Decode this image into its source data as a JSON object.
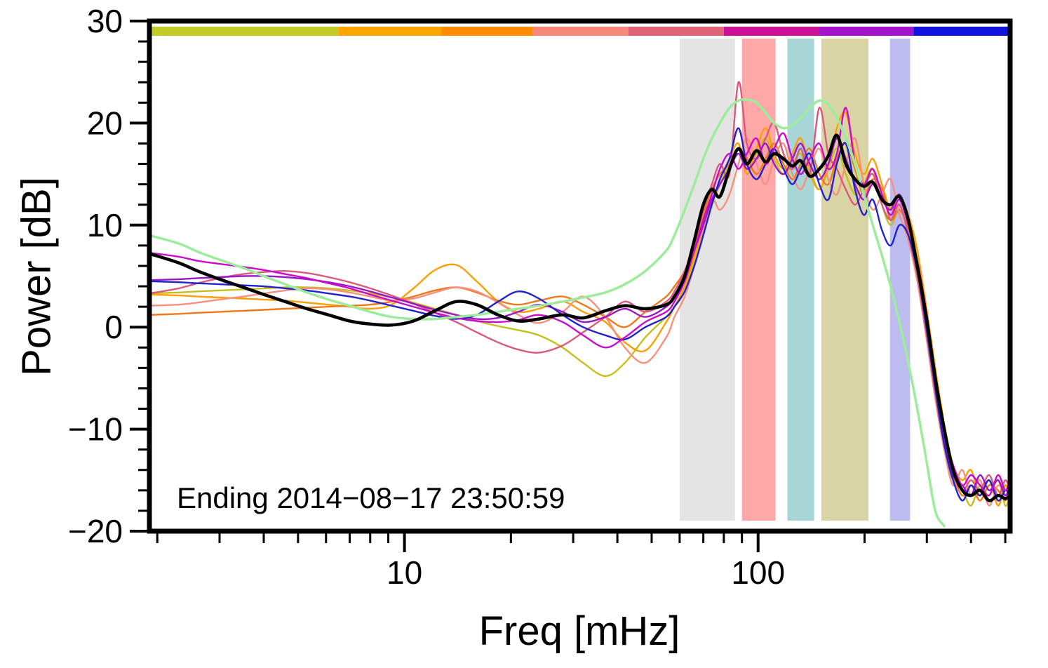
{
  "chart_data": {
    "type": "line",
    "title": "",
    "xlabel": "Freq [mHz]",
    "ylabel": "Power [dB]",
    "annotation": "Ending 2014−08−17 23:50:59",
    "x_scale": "log",
    "xlim": [
      1.9,
      516
    ],
    "ylim": [
      -20,
      30
    ],
    "grid": false,
    "legend": "none",
    "x_ticks_labeled": [
      10,
      100
    ],
    "x_tick_label_texts": [
      "10",
      "100"
    ],
    "y_major_ticks": [
      -20,
      -10,
      0,
      10,
      20,
      30
    ],
    "y_tick_labels": [
      "−20",
      "−10",
      "0",
      "10",
      "20",
      "30"
    ],
    "y_minor_step": 2,
    "x": [
      1.9,
      2.3,
      2.6,
      3,
      3.5,
      4,
      4.6,
      5.3,
      6.1,
      7,
      8,
      9.2,
      10.6,
      12.2,
      14,
      16,
      18.4,
      21,
      24,
      28,
      32,
      37,
      42,
      48,
      55,
      58,
      62,
      66,
      70,
      74,
      78,
      83,
      88,
      93,
      99,
      105,
      111,
      118,
      125,
      132,
      140,
      149,
      158,
      167,
      177,
      188,
      199,
      211,
      224,
      237,
      251,
      266,
      282,
      299,
      317,
      336,
      356,
      378,
      400,
      424,
      450,
      477,
      500,
      515
    ],
    "series": [
      {
        "name": "olive",
        "color": "#C6BE1C",
        "width": 2.4,
        "values": [
          3.3,
          3.4,
          3.5,
          3.6,
          3.7,
          3.8,
          3.9,
          3.9,
          3.8,
          3.6,
          3.3,
          2.9,
          2.4,
          1.8,
          1.2,
          0.6,
          0.1,
          -0.3,
          -0.8,
          -2.0,
          -3.5,
          -4.8,
          -3.5,
          -1.0,
          1.0,
          2.0,
          3.5,
          6.5,
          9.5,
          12.0,
          14.0,
          16.0,
          17.5,
          15.5,
          17.0,
          18.5,
          16.5,
          15.0,
          16.0,
          17.0,
          15.0,
          13.5,
          15.5,
          17.5,
          15.0,
          13.0,
          14.0,
          15.5,
          12.0,
          10.0,
          11.5,
          9.5,
          5.0,
          -0.5,
          -6.5,
          -12.0,
          -15.0,
          -16.0,
          -17.5,
          -15.5,
          -16.5,
          -15.0,
          -17.5,
          -16.5
        ]
      },
      {
        "name": "orange",
        "color": "#FF9E00",
        "width": 2.4,
        "values": [
          3.2,
          3.1,
          3.0,
          2.9,
          2.8,
          2.7,
          2.6,
          2.4,
          2.2,
          2.0,
          1.8,
          2.2,
          3.8,
          5.6,
          6.1,
          4.5,
          2.5,
          1.5,
          1.8,
          2.5,
          1.5,
          0.5,
          -1.5,
          -2.3,
          0.5,
          2.0,
          4.0,
          7.0,
          10.0,
          12.0,
          14.5,
          16.5,
          18.0,
          15.0,
          17.5,
          19.5,
          17.0,
          15.5,
          17.0,
          18.5,
          15.5,
          13.5,
          16.0,
          19.5,
          21.0,
          17.0,
          15.0,
          16.5,
          14.0,
          11.5,
          12.5,
          11.0,
          7.5,
          2.0,
          -4.0,
          -9.5,
          -13.5,
          -15.0,
          -14.0,
          -16.5,
          -15.0,
          -17.5,
          -15.5,
          -16.5
        ]
      },
      {
        "name": "dark-orange",
        "color": "#F07818",
        "width": 2.4,
        "values": [
          1.2,
          1.3,
          1.4,
          1.5,
          1.6,
          1.7,
          1.8,
          1.9,
          2.0,
          2.1,
          2.2,
          2.5,
          3.0,
          3.6,
          3.9,
          3.4,
          2.6,
          2.2,
          2.6,
          3.0,
          2.2,
          1.0,
          0.0,
          1.5,
          3.0,
          4.0,
          5.5,
          8.0,
          11.0,
          13.5,
          15.0,
          16.0,
          17.5,
          16.5,
          15.0,
          16.5,
          18.0,
          16.0,
          14.5,
          16.0,
          17.5,
          15.0,
          14.0,
          16.5,
          18.0,
          15.5,
          13.0,
          14.5,
          13.5,
          10.5,
          11.5,
          9.5,
          5.5,
          0.0,
          -6.0,
          -11.0,
          -14.5,
          -16.5,
          -15.5,
          -17.0,
          -15.5,
          -16.0,
          -17.0,
          -16.0
        ]
      },
      {
        "name": "salmon",
        "color": "#F8907E",
        "width": 2.4,
        "values": [
          2.1,
          2.2,
          2.4,
          2.7,
          3.0,
          3.3,
          3.6,
          3.8,
          3.7,
          3.4,
          3.0,
          2.6,
          2.8,
          3.4,
          3.9,
          3.5,
          2.4,
          1.2,
          0.4,
          1.5,
          3.0,
          1.0,
          -2.0,
          -3.5,
          -1.0,
          1.0,
          3.0,
          6.0,
          9.5,
          12.5,
          11.5,
          13.0,
          16.0,
          18.5,
          16.0,
          14.0,
          16.5,
          18.0,
          15.0,
          13.5,
          15.5,
          17.5,
          14.5,
          13.0,
          16.0,
          18.5,
          14.0,
          11.5,
          13.0,
          14.5,
          11.0,
          8.5,
          4.5,
          -1.0,
          -7.0,
          -12.0,
          -15.5,
          -14.0,
          -16.5,
          -15.0,
          -17.5,
          -15.5,
          -16.5,
          -15.5
        ]
      },
      {
        "name": "crimson",
        "color": "#D95B79",
        "width": 2.4,
        "values": [
          3.3,
          3.8,
          4.3,
          4.8,
          5.2,
          5.4,
          5.5,
          5.3,
          4.9,
          4.4,
          3.8,
          3.1,
          2.3,
          1.4,
          0.5,
          -0.5,
          -1.5,
          -2.2,
          -2.5,
          -1.8,
          -0.5,
          1.0,
          2.5,
          1.5,
          2.5,
          3.5,
          5.5,
          8.0,
          11.5,
          14.0,
          16.0,
          15.0,
          24.0,
          18.0,
          16.5,
          18.5,
          20.0,
          17.0,
          15.5,
          17.5,
          15.0,
          21.5,
          17.0,
          15.5,
          13.5,
          12.0,
          13.5,
          15.0,
          12.0,
          10.5,
          12.0,
          9.0,
          5.0,
          -0.5,
          -6.5,
          -11.5,
          -14.0,
          -16.0,
          -15.0,
          -16.0,
          -14.5,
          -16.5,
          -15.0,
          -16.0
        ]
      },
      {
        "name": "purple",
        "color": "#9A18C8",
        "width": 2.4,
        "values": [
          4.6,
          4.7,
          4.8,
          4.9,
          5.0,
          5.0,
          4.9,
          4.7,
          4.4,
          4.0,
          3.5,
          2.9,
          2.3,
          1.7,
          1.2,
          0.8,
          0.9,
          1.5,
          2.2,
          1.5,
          0.5,
          1.0,
          1.8,
          1.0,
          2.0,
          3.0,
          5.0,
          7.5,
          10.0,
          12.5,
          14.0,
          15.5,
          17.0,
          15.5,
          16.5,
          18.0,
          16.0,
          15.0,
          16.5,
          18.0,
          16.0,
          14.5,
          16.0,
          18.5,
          16.5,
          14.0,
          12.5,
          14.0,
          12.5,
          11.5,
          13.0,
          10.5,
          6.0,
          0.5,
          -5.5,
          -11.0,
          -14.5,
          -15.5,
          -16.5,
          -14.5,
          -16.0,
          -15.0,
          -16.5,
          -15.5
        ]
      },
      {
        "name": "blue",
        "color": "#2222CC",
        "width": 2.4,
        "values": [
          4.5,
          4.4,
          4.3,
          4.2,
          4.1,
          4.0,
          3.8,
          3.6,
          3.3,
          3.0,
          2.6,
          2.1,
          1.6,
          1.1,
          0.8,
          1.2,
          2.5,
          3.5,
          2.8,
          1.2,
          0.0,
          -0.8,
          -1.2,
          0.0,
          1.0,
          2.0,
          3.5,
          6.0,
          9.0,
          12.0,
          14.5,
          16.5,
          19.5,
          16.0,
          14.5,
          16.0,
          17.5,
          15.5,
          14.0,
          15.5,
          17.0,
          14.0,
          12.5,
          16.0,
          18.0,
          13.5,
          11.0,
          12.5,
          9.5,
          8.0,
          10.0,
          9.0,
          5.5,
          0.0,
          -6.0,
          -11.5,
          -15.0,
          -17.0,
          -15.5,
          -16.5,
          -15.0,
          -17.0,
          -16.0,
          -16.5
        ]
      },
      {
        "name": "magenta",
        "color": "#CB0ACB",
        "width": 2.4,
        "values": [
          7.3,
          6.9,
          6.5,
          6.2,
          5.9,
          5.6,
          5.2,
          4.8,
          4.3,
          3.8,
          3.2,
          2.6,
          2.0,
          1.4,
          0.9,
          0.6,
          0.5,
          0.7,
          1.2,
          0.5,
          -0.8,
          -2.0,
          -1.0,
          0.5,
          1.5,
          2.5,
          4.5,
          7.5,
          10.5,
          13.0,
          15.5,
          17.0,
          15.5,
          17.0,
          18.5,
          16.0,
          17.5,
          19.0,
          16.5,
          15.0,
          16.5,
          18.0,
          15.5,
          17.0,
          21.5,
          16.0,
          14.0,
          15.5,
          13.0,
          11.0,
          12.5,
          10.0,
          6.5,
          1.5,
          -4.5,
          -10.5,
          -13.5,
          -15.5,
          -14.5,
          -15.5,
          -16.5,
          -14.5,
          -16.0,
          -15.0
        ]
      },
      {
        "name": "green",
        "color": "#9CEC9C",
        "width": 3.5,
        "values": [
          9.0,
          8.2,
          7.4,
          6.6,
          5.8,
          5.0,
          4.2,
          3.4,
          2.7,
          2.1,
          1.5,
          1.0,
          0.8,
          0.8,
          1.0,
          1.2,
          1.5,
          1.8,
          2.1,
          2.5,
          2.9,
          3.4,
          4.2,
          5.5,
          7.5,
          9.0,
          11.5,
          14.0,
          16.5,
          18.5,
          20.0,
          21.5,
          22.2,
          22.3,
          22.0,
          21.0,
          20.0,
          19.5,
          19.8,
          20.5,
          21.5,
          22.2,
          21.8,
          20.5,
          18.5,
          16.0,
          13.0,
          10.0,
          7.0,
          4.0,
          0.5,
          -3.5,
          -8.0,
          -13.0,
          -18.0,
          -19.5,
          null,
          null,
          null,
          null,
          null,
          null,
          null,
          null
        ]
      },
      {
        "name": "black-mean",
        "color": "#000000",
        "width": 4.5,
        "values": [
          7.2,
          6.3,
          5.5,
          4.7,
          3.9,
          3.2,
          2.5,
          1.8,
          1.2,
          0.6,
          0.3,
          0.2,
          0.6,
          1.6,
          2.5,
          2.2,
          1.2,
          0.6,
          0.8,
          1.2,
          0.9,
          1.6,
          2.1,
          1.8,
          2.2,
          3.0,
          5.0,
          8.5,
          12.0,
          13.5,
          12.8,
          15.5,
          17.5,
          16.0,
          17.3,
          16.2,
          17.0,
          16.5,
          15.8,
          16.3,
          14.8,
          15.5,
          16.8,
          18.8,
          16.0,
          14.5,
          13.8,
          14.2,
          12.5,
          12.0,
          12.8,
          10.5,
          6.0,
          1.0,
          -5.0,
          -10.0,
          -14.0,
          -16.0,
          -16.5,
          -16.0,
          -17.0,
          -16.5,
          -16.8,
          -16.5
        ]
      }
    ],
    "bands": [
      {
        "name": "band-gray",
        "color": "#E4E4E4",
        "from": 60,
        "to": 86
      },
      {
        "name": "band-red",
        "color": "#FFA8A8",
        "from": 90,
        "to": 112
      },
      {
        "name": "band-teal",
        "color": "#A8D5D5",
        "from": 121,
        "to": 144
      },
      {
        "name": "band-olive",
        "color": "#D8D4A4",
        "from": 151,
        "to": 205
      },
      {
        "name": "band-lavender",
        "color": "#BCBCF0",
        "from": 236,
        "to": 269
      }
    ],
    "top_bar": [
      {
        "color": "#C3CC25",
        "from": 1.9,
        "to": 6.5
      },
      {
        "color": "#FFA500",
        "from": 6.5,
        "to": 12.7
      },
      {
        "color": "#FF8C00",
        "from": 12.7,
        "to": 23
      },
      {
        "color": "#F9897B",
        "from": 23,
        "to": 43
      },
      {
        "color": "#E06377",
        "from": 43,
        "to": 80
      },
      {
        "color": "#CC1199",
        "from": 80,
        "to": 149
      },
      {
        "color": "#A412CC",
        "from": 149,
        "to": 275
      },
      {
        "color": "#1414E0",
        "from": 275,
        "to": 516
      }
    ]
  }
}
